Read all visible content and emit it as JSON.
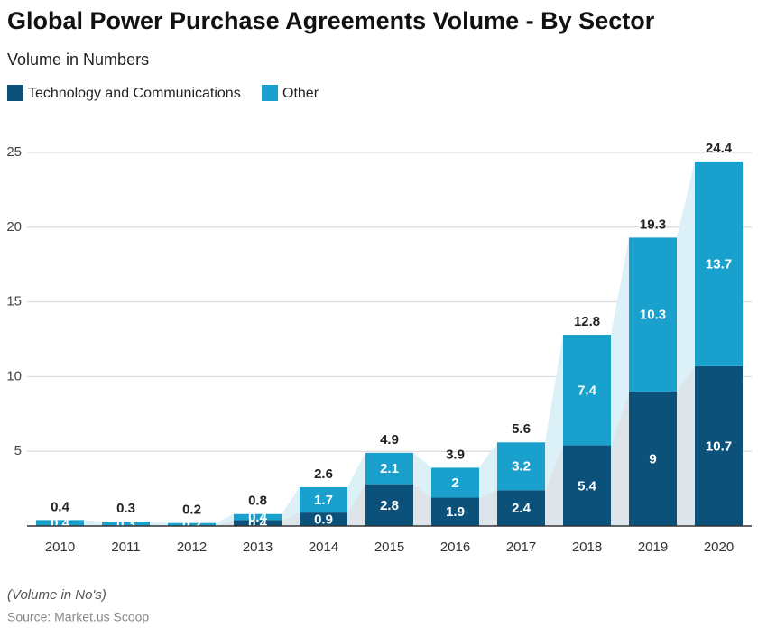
{
  "chart_data": {
    "type": "stacked_bar",
    "title": "Global Power Purchase Agreements Volume - By Sector",
    "subtitle": "Volume in Numbers",
    "categories": [
      "2010",
      "2011",
      "2012",
      "2013",
      "2014",
      "2015",
      "2016",
      "2017",
      "2018",
      "2019",
      "2020"
    ],
    "series": [
      {
        "name": "Technology and Communications",
        "color": "#0b5179",
        "values": [
          0,
          0,
          0,
          0.4,
          0.9,
          2.8,
          1.9,
          2.4,
          5.4,
          9,
          10.7
        ]
      },
      {
        "name": "Other",
        "color": "#1aa0cc",
        "values": [
          0.4,
          0.3,
          0.2,
          0.4,
          1.7,
          2.1,
          2,
          3.2,
          7.4,
          10.3,
          13.7
        ]
      }
    ],
    "totals": [
      0.4,
      0.3,
      0.2,
      0.8,
      2.6,
      4.9,
      3.9,
      5.6,
      12.8,
      19.3,
      24.4
    ],
    "ylim": [
      0,
      25
    ],
    "yticks": [
      5,
      10,
      15,
      20,
      25
    ],
    "grid": true,
    "footnote": "(Volume in No's)",
    "source": "Source: Market.us Scoop"
  }
}
